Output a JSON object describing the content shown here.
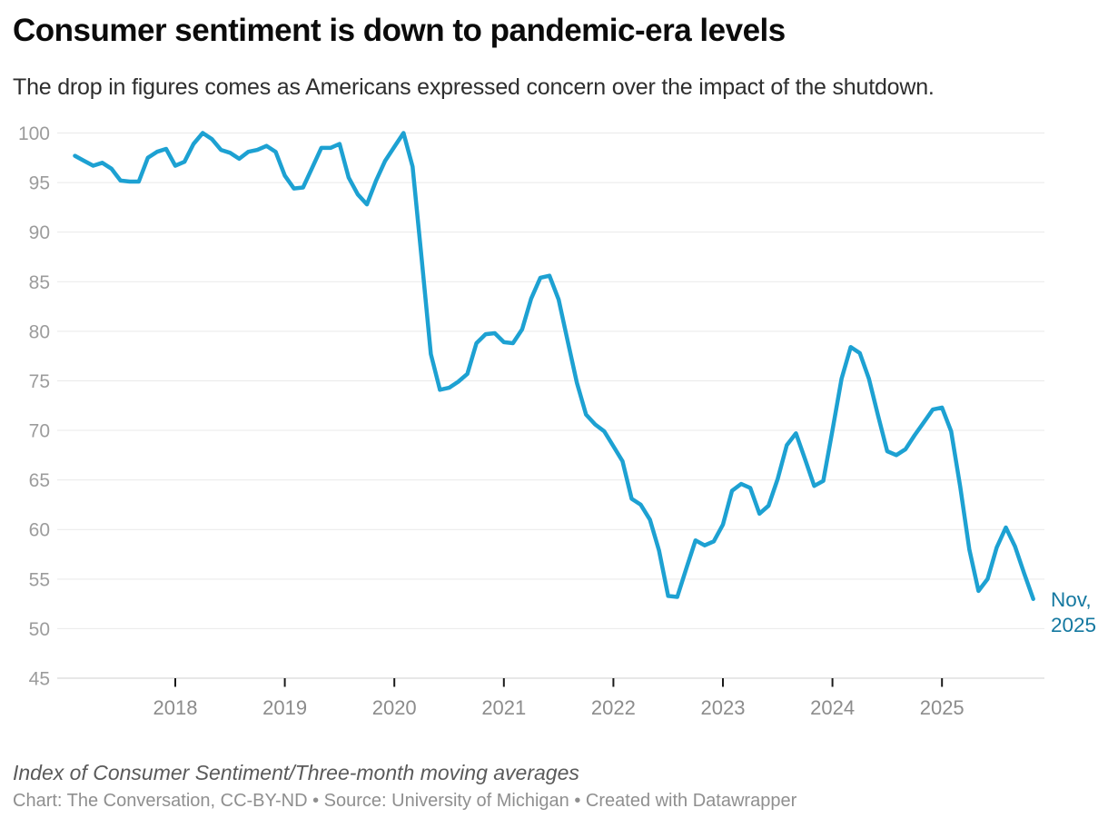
{
  "header": {
    "title": "Consumer sentiment is down to pandemic-era levels",
    "subtitle": "The drop in figures comes as Americans expressed concern over the impact of the shutdown."
  },
  "chart_data": {
    "type": "line",
    "title": "Consumer sentiment is down to pandemic-era levels",
    "ylabel": "Index of Consumer Sentiment",
    "xlabel": "",
    "ylim": [
      45,
      100
    ],
    "y_ticks": [
      45,
      50,
      55,
      60,
      65,
      70,
      75,
      80,
      85,
      90,
      95,
      100
    ],
    "x_ticks": [
      2018,
      2019,
      2020,
      2021,
      2022,
      2023,
      2024,
      2025
    ],
    "grid": "horizontal",
    "legend": "none",
    "frequency": "monthly",
    "start": "Feb 2017",
    "end": "Nov 2025",
    "last_value": 53.0,
    "line_color": "#1da1d2",
    "annotation": {
      "line1": "Nov,",
      "line2": "2025",
      "color": "#1478a0"
    },
    "series": [
      {
        "year": 2017,
        "start_month": "Feb",
        "values": [
          97.7,
          97.2,
          96.7,
          97.0,
          96.4,
          95.2,
          95.1,
          95.1,
          97.5,
          98.1,
          98.4
        ]
      },
      {
        "year": 2018,
        "start_month": "Jan",
        "values": [
          96.7,
          97.1,
          98.9,
          100.0,
          99.4,
          98.3,
          98.0,
          97.4,
          98.1,
          98.3,
          98.7,
          98.1
        ]
      },
      {
        "year": 2019,
        "start_month": "Jan",
        "values": [
          95.7,
          94.4,
          94.5,
          96.5,
          98.5,
          98.5,
          98.9,
          95.5,
          93.8,
          92.8,
          95.2,
          97.2
        ]
      },
      {
        "year": 2020,
        "start_month": "Jan",
        "values": [
          98.6,
          100.0,
          96.6,
          87.3,
          77.7,
          74.1,
          74.3,
          74.9,
          75.7,
          78.8,
          79.7,
          79.8
        ]
      },
      {
        "year": 2021,
        "start_month": "Jan",
        "values": [
          78.9,
          78.8,
          80.2,
          83.3,
          85.4,
          85.6,
          83.2,
          79.0,
          74.8,
          71.6,
          70.6,
          69.9
        ]
      },
      {
        "year": 2022,
        "start_month": "Jan",
        "values": [
          68.4,
          66.9,
          63.1,
          62.5,
          61.0,
          57.9,
          53.3,
          53.2,
          56.1,
          58.9,
          58.4,
          58.8
        ]
      },
      {
        "year": 2023,
        "start_month": "Jan",
        "values": [
          60.5,
          63.9,
          64.6,
          64.2,
          61.6,
          62.4,
          65.1,
          68.5,
          69.7,
          67.1,
          64.4,
          64.9
        ]
      },
      {
        "year": 2024,
        "start_month": "Jan",
        "values": [
          70.0,
          75.2,
          78.4,
          77.8,
          75.2,
          71.5,
          67.9,
          67.5,
          68.1,
          69.5,
          70.8,
          72.1
        ]
      },
      {
        "year": 2025,
        "start_month": "Jan",
        "values": [
          72.3,
          69.9,
          64.3,
          58.0,
          53.8,
          55.0,
          58.2,
          60.2,
          58.3,
          55.6,
          53.0
        ]
      }
    ]
  },
  "footer": {
    "note": "Index of Consumer Sentiment/Three-month moving averages",
    "credit": "Chart: The Conversation, CC-BY-ND • Source: University of Michigan • Created with Datawrapper"
  }
}
